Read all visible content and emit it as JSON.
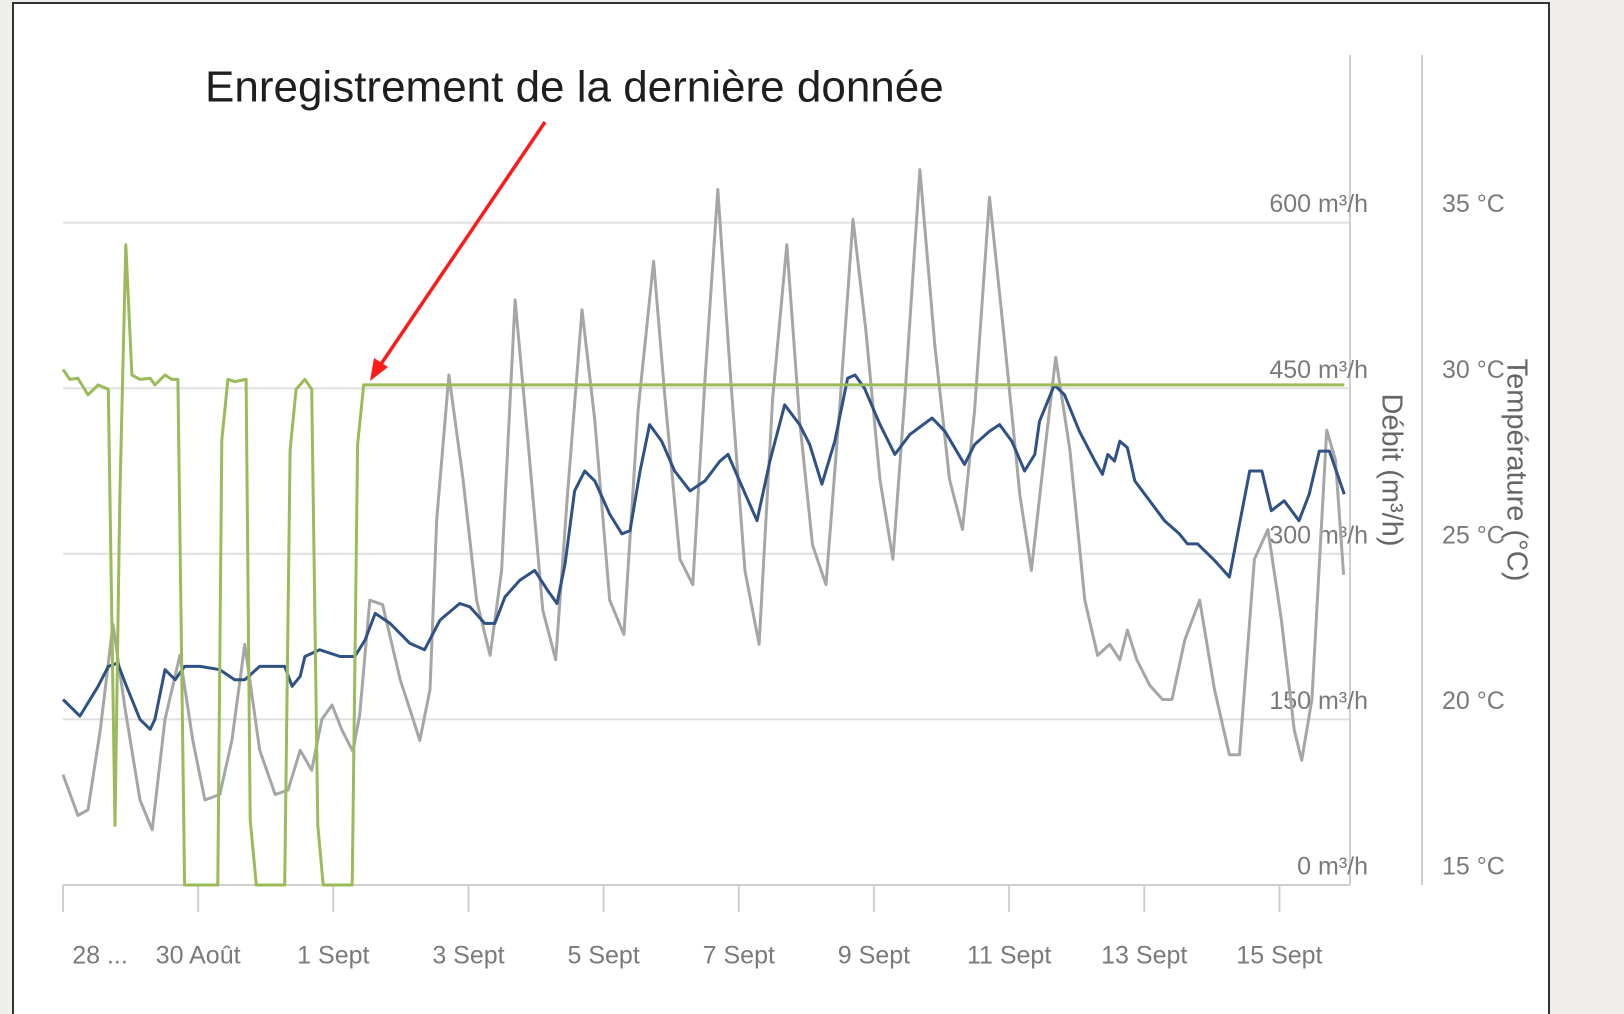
{
  "chart_data": {
    "type": "line",
    "annotation": "Enregistrement de la dernière donnée",
    "ylabel": "Débit (m³/h)",
    "y2label": "Température (°C)",
    "xlim": [
      0,
      19
    ],
    "xticks": [
      {
        "value": 0,
        "label": "28 ..."
      },
      {
        "value": 2,
        "label": "30 Août"
      },
      {
        "value": 4,
        "label": "1 Sept"
      },
      {
        "value": 6,
        "label": "3 Sept"
      },
      {
        "value": 8,
        "label": "5 Sept"
      },
      {
        "value": 10,
        "label": "7 Sept"
      },
      {
        "value": 12,
        "label": "9 Sept"
      },
      {
        "value": 14,
        "label": "11 Sept"
      },
      {
        "value": 16,
        "label": "13 Sept"
      },
      {
        "value": 18,
        "label": "15 Sept"
      }
    ],
    "ylim": [
      0,
      750
    ],
    "yticks": [
      {
        "value": 0,
        "label": "0 m³/h"
      },
      {
        "value": 150,
        "label": "150 m³/h"
      },
      {
        "value": 300,
        "label": "300 m³/h"
      },
      {
        "value": 450,
        "label": "450 m³/h"
      },
      {
        "value": 600,
        "label": "600 m³/h"
      }
    ],
    "y2lim": [
      15,
      40
    ],
    "y2ticks": [
      {
        "value": 15,
        "label": "15 °C"
      },
      {
        "value": 20,
        "label": "20 °C"
      },
      {
        "value": 25,
        "label": "25 °C"
      },
      {
        "value": 30,
        "label": "30 °C"
      },
      {
        "value": 35,
        "label": "35 °C"
      }
    ],
    "grid": true,
    "series": [
      {
        "color": "#a6a6a6",
        "x": [
          0,
          0.22,
          0.37,
          0.55,
          0.74,
          0.92,
          1.14,
          1.32,
          1.51,
          1.73,
          1.92,
          2.1,
          2.32,
          2.5,
          2.69,
          2.91,
          3.14,
          3.33,
          3.51,
          3.68,
          3.83,
          3.98,
          4.13,
          4.29,
          4.39,
          4.54,
          4.73,
          4.99,
          5.18,
          5.28,
          5.43,
          5.53,
          5.71,
          5.92,
          6.12,
          6.32,
          6.49,
          6.69,
          6.88,
          7.1,
          7.29,
          7.46,
          7.68,
          7.87,
          8.09,
          8.3,
          8.51,
          8.74,
          8.91,
          9.13,
          9.32,
          9.5,
          9.69,
          9.87,
          10.09,
          10.3,
          10.5,
          10.71,
          10.9,
          11.09,
          11.29,
          11.49,
          11.69,
          11.88,
          12.09,
          12.28,
          12.46,
          12.68,
          12.9,
          13.12,
          13.31,
          13.49,
          13.71,
          13.93,
          14.16,
          14.33,
          14.53,
          14.69,
          14.9,
          15.12,
          15.31,
          15.49,
          15.64,
          15.75,
          15.89,
          16.08,
          16.27,
          16.41,
          16.6,
          16.82,
          17.04,
          17.26,
          17.41,
          17.63,
          17.83,
          18.03,
          18.22,
          18.33,
          18.48,
          18.7,
          18.83,
          18.95
        ],
        "values": [
          100,
          63,
          68,
          140,
          236,
          159,
          77,
          50,
          150,
          208,
          131,
          77,
          82,
          131,
          218,
          122,
          82,
          86,
          122,
          104,
          150,
          163,
          140,
          121,
          154,
          258,
          254,
          186,
          150,
          131,
          177,
          331,
          462,
          367,
          258,
          208,
          285,
          530,
          403,
          249,
          204,
          349,
          521,
          421,
          258,
          227,
          430,
          565,
          440,
          295,
          272,
          458,
          630,
          467,
          285,
          218,
          440,
          580,
          421,
          308,
          272,
          430,
          603,
          503,
          367,
          295,
          444,
          648,
          489,
          367,
          322,
          430,
          623,
          494,
          353,
          285,
          394,
          478,
          394,
          258,
          208,
          218,
          204,
          231,
          204,
          181,
          168,
          168,
          222,
          258,
          177,
          118,
          118,
          295,
          322,
          240,
          140,
          113,
          168,
          412,
          385,
          281
        ]
      },
      {
        "color": "#2f5286",
        "axis": "y2",
        "x": [
          0,
          0.25,
          0.52,
          0.67,
          0.81,
          0.92,
          1.14,
          1.29,
          1.36,
          1.51,
          1.66,
          1.8,
          2.03,
          2.32,
          2.54,
          2.69,
          2.91,
          3.28,
          3.39,
          3.51,
          3.58,
          3.8,
          4.1,
          4.32,
          4.47,
          4.62,
          4.84,
          5.13,
          5.35,
          5.58,
          5.87,
          6.02,
          6.24,
          6.39,
          6.54,
          6.76,
          6.98,
          7.17,
          7.31,
          7.43,
          7.57,
          7.72,
          7.87,
          8.09,
          8.27,
          8.39,
          8.54,
          8.68,
          8.86,
          9.05,
          9.28,
          9.5,
          9.72,
          9.84,
          10.01,
          10.27,
          10.46,
          10.68,
          10.9,
          11.05,
          11.23,
          11.42,
          11.61,
          11.72,
          11.86,
          12.09,
          12.31,
          12.53,
          12.86,
          13.05,
          13.34,
          13.49,
          13.71,
          13.86,
          14.04,
          14.23,
          14.38,
          14.45,
          14.67,
          14.82,
          15.04,
          15.27,
          15.38,
          15.46,
          15.56,
          15.64,
          15.75,
          15.86,
          16.08,
          16.3,
          16.52,
          16.64,
          16.79,
          17.04,
          17.26,
          17.41,
          17.56,
          17.74,
          17.88,
          18.07,
          18.29,
          18.44,
          18.59,
          18.74,
          18.96
        ],
        "values": [
          20.6,
          20.1,
          21,
          21.6,
          21.7,
          21.1,
          20,
          19.7,
          20,
          21.5,
          21.2,
          21.6,
          21.6,
          21.5,
          21.2,
          21.2,
          21.6,
          21.6,
          21,
          21.3,
          21.9,
          22.1,
          21.9,
          21.9,
          22.4,
          23.2,
          22.9,
          22.3,
          22.1,
          23,
          23.5,
          23.4,
          22.9,
          22.9,
          23.7,
          24.2,
          24.5,
          23.9,
          23.5,
          24.7,
          26.9,
          27.5,
          27.2,
          26.2,
          25.6,
          25.7,
          27.5,
          28.9,
          28.4,
          27.5,
          26.9,
          27.2,
          27.8,
          28,
          27.2,
          26,
          27.8,
          29.5,
          28.9,
          28.3,
          27.1,
          28.4,
          30.3,
          30.4,
          30,
          28.9,
          28,
          28.6,
          29.1,
          28.7,
          27.7,
          28.3,
          28.7,
          28.9,
          28.4,
          27.5,
          28,
          29,
          30.1,
          29.8,
          28.7,
          27.8,
          27.4,
          28,
          27.8,
          28.4,
          28.2,
          27.2,
          26.6,
          26,
          25.6,
          25.3,
          25.3,
          24.8,
          24.3,
          25.9,
          27.5,
          27.5,
          26.3,
          26.6,
          26,
          26.8,
          28.1,
          28.1,
          26.8
        ]
      },
      {
        "color": "#9bbb59",
        "x": [
          0,
          0.1,
          0.22,
          0.37,
          0.52,
          0.67,
          0.77,
          0.84,
          0.93,
          1.02,
          1.14,
          1.29,
          1.36,
          1.51,
          1.61,
          1.7,
          1.8,
          2.29,
          2.35,
          2.44,
          2.54,
          2.71,
          2.77,
          2.86,
          3.28,
          3.36,
          3.45,
          3.58,
          3.68,
          3.77,
          3.85,
          4.28,
          4.36,
          4.45,
          18.96
        ],
        "values": [
          467,
          458,
          459,
          444,
          453,
          449,
          54,
          349,
          580,
          462,
          458,
          459,
          453,
          462,
          458,
          458,
          0,
          0,
          403,
          458,
          456,
          458,
          59,
          0,
          0,
          394,
          449,
          458,
          449,
          54,
          0,
          0,
          399,
          453,
          453
        ]
      }
    ]
  }
}
